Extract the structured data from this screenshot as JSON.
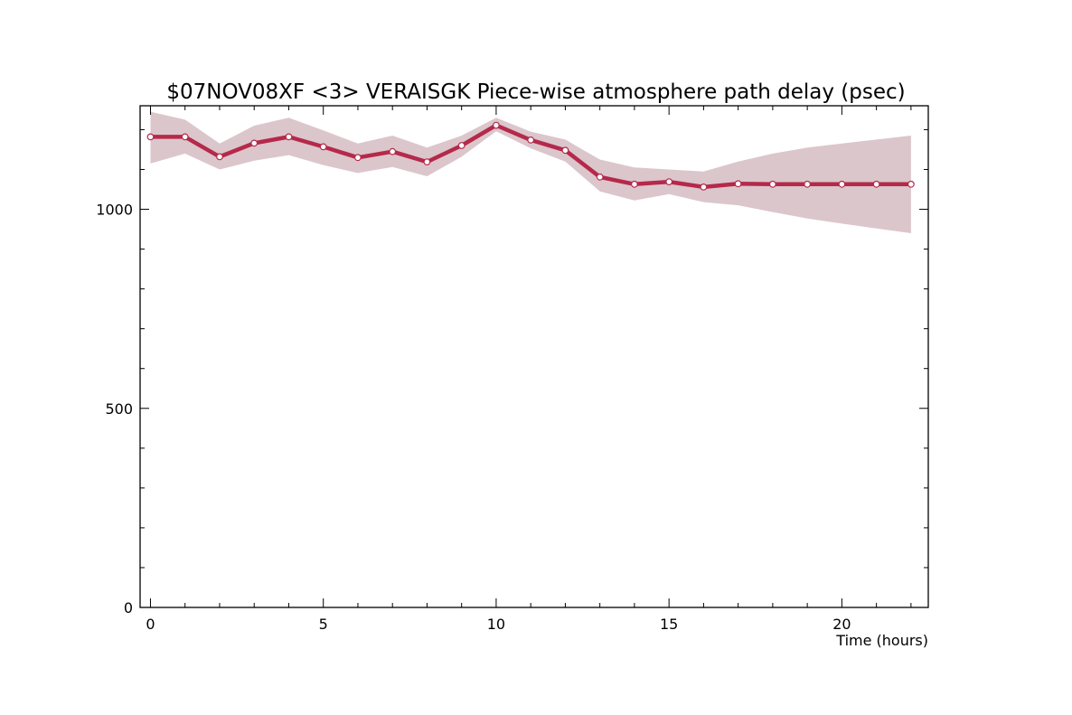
{
  "chart_data": {
    "type": "line",
    "title": "$07NOV08XF <3>  VERAISGK  Piece-wise atmosphere path delay (psec)",
    "xlabel": "Time (hours)",
    "ylabel": "",
    "xlim": [
      -0.3,
      22.5
    ],
    "ylim": [
      0,
      1260
    ],
    "x_ticks": [
      0,
      5,
      10,
      15,
      20
    ],
    "y_ticks": [
      0,
      500,
      1000
    ],
    "x_minor_step": 1,
    "y_minor_step": 100,
    "grid": false,
    "legend": "none",
    "series": [
      {
        "x": [
          0,
          1,
          2,
          3,
          4,
          5,
          6,
          7,
          8,
          9,
          10,
          11,
          12,
          13,
          14,
          15,
          16,
          17,
          18,
          19,
          20,
          21,
          22
        ],
        "values": [
          1182,
          1182,
          1132,
          1166,
          1182,
          1157,
          1130,
          1145,
          1119,
          1160,
          1211,
          1174,
          1148,
          1081,
          1063,
          1069,
          1056,
          1064,
          1063,
          1063,
          1063,
          1063,
          1063
        ],
        "upper": [
          1245,
          1225,
          1165,
          1210,
          1230,
          1198,
          1165,
          1185,
          1155,
          1185,
          1230,
          1195,
          1175,
          1125,
          1105,
          1100,
          1095,
          1120,
          1140,
          1155,
          1165,
          1175,
          1185
        ],
        "lower": [
          1115,
          1140,
          1100,
          1122,
          1136,
          1111,
          1091,
          1106,
          1083,
          1132,
          1196,
          1153,
          1120,
          1045,
          1022,
          1038,
          1018,
          1010,
          993,
          977,
          964,
          952,
          940
        ]
      }
    ],
    "colors": {
      "line": "#b5294a",
      "marker_face": "#ffffff",
      "band": "#dbc6cc",
      "axes": "#000000"
    }
  }
}
